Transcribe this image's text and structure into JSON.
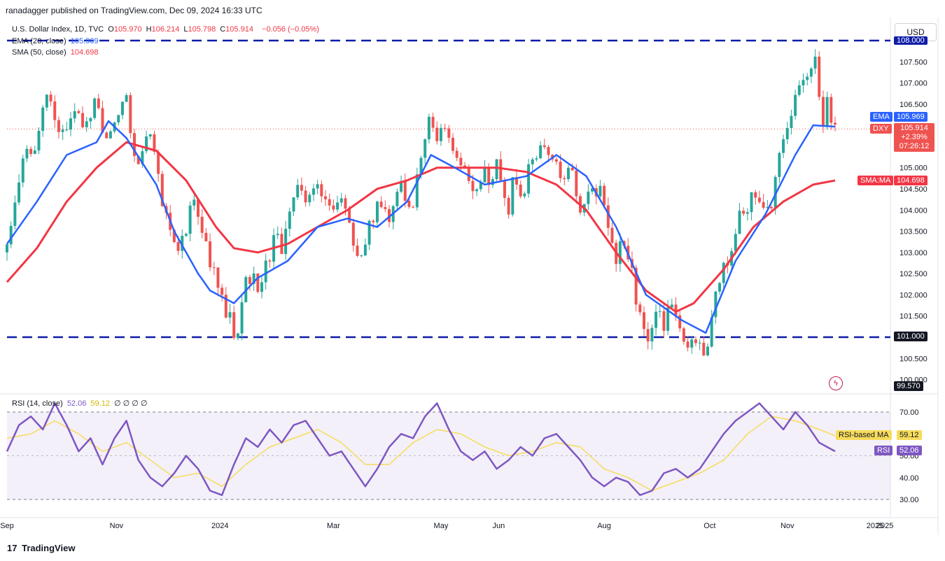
{
  "header": {
    "published": "ranadagger published on TradingView.com, Dec 09, 2024 16:33 UTC"
  },
  "legend": {
    "symbol": "U.S. Dollar Index, 1D, TVC",
    "ohlc": [
      {
        "k": "O",
        "v": "105.970"
      },
      {
        "k": "H",
        "v": "106.214"
      },
      {
        "k": "L",
        "v": "105.798"
      },
      {
        "k": "C",
        "v": "105.914"
      }
    ],
    "change": "−0.056 (−0.05%)",
    "ema_label": "EMA (20, close)",
    "ema_value": "105.969",
    "sma_label": "SMA (50, close)",
    "sma_value": "104.698",
    "rsi_label": "RSI (14, close)",
    "rsi_value": "52.06",
    "rsi_ma_value": "59.12",
    "rsi_extra": "∅ ∅ ∅ ∅"
  },
  "currency_button": "USD",
  "tags": {
    "ema_name": "EMA",
    "ema_value": "105.969",
    "dxy_name": "DXY",
    "dxy_value": "105.914",
    "dxy_change": "+2.39%",
    "dxy_timer": "07:26:12",
    "sma_name": "SMA:MA",
    "sma_value": "104.698",
    "level_101": "101.000",
    "level_top": "108.000",
    "low_value": "99.570",
    "rsi_ma_name": "RSI-based MA",
    "rsi_ma_value": "59.12",
    "rsi_name": "RSI",
    "rsi_value": "52.06"
  },
  "footer": {
    "brand": "TradingView"
  },
  "colors": {
    "up": "#26a69a",
    "down": "#ef5350",
    "ema": "#2962ff",
    "sma": "#f23645",
    "rsi": "#7e57c2",
    "rsi_ma": "#f7dc5b",
    "level": "#0d1ca8"
  },
  "chart_data": [
    {
      "type": "candlestick",
      "symbol": "DXY",
      "x_labels": [
        "Sep",
        "Nov",
        "2024",
        "Mar",
        "May",
        "Jun",
        "Aug",
        "Oct",
        "Nov",
        "2025"
      ],
      "y_ticks": [
        100.0,
        100.5,
        101.5,
        102.0,
        102.5,
        103.0,
        103.5,
        104.0,
        104.5,
        105.0,
        106.5,
        107.0,
        107.5
      ],
      "ylim": [
        99.57,
        108.4
      ],
      "horizontal_levels": [
        101.0,
        108.0
      ],
      "close_path": [
        [
          0,
          103.0
        ],
        [
          3,
          103.9
        ],
        [
          6,
          104.8
        ],
        [
          9,
          105.4
        ],
        [
          12,
          105.1
        ],
        [
          15,
          105.6
        ],
        [
          18,
          106.5
        ],
        [
          21,
          106.8
        ],
        [
          24,
          106.2
        ],
        [
          27,
          106.0
        ],
        [
          30,
          105.8
        ],
        [
          33,
          106.4
        ],
        [
          36,
          106.1
        ],
        [
          39,
          105.7
        ],
        [
          42,
          106.3
        ],
        [
          45,
          106.6
        ],
        [
          48,
          106.0
        ],
        [
          51,
          105.8
        ],
        [
          54,
          105.9
        ],
        [
          57,
          106.6
        ],
        [
          60,
          106.9
        ],
        [
          63,
          105.6
        ],
        [
          66,
          105.2
        ],
        [
          69,
          105.6
        ],
        [
          72,
          106.0
        ],
        [
          75,
          105.0
        ],
        [
          78,
          104.3
        ],
        [
          81,
          103.8
        ],
        [
          84,
          103.3
        ],
        [
          87,
          103.0
        ],
        [
          90,
          103.6
        ],
        [
          93,
          104.2
        ],
        [
          96,
          104.0
        ],
        [
          99,
          103.2
        ],
        [
          102,
          102.8
        ],
        [
          105,
          102.3
        ],
        [
          108,
          101.8
        ],
        [
          110,
          101.4
        ],
        [
          112,
          101.8
        ],
        [
          114,
          101.0
        ],
        [
          116,
          100.9
        ],
        [
          118,
          101.6
        ],
        [
          120,
          102.3
        ],
        [
          123,
          102.5
        ],
        [
          126,
          102.2
        ],
        [
          129,
          102.5
        ],
        [
          132,
          103.0
        ],
        [
          135,
          103.4
        ],
        [
          138,
          103.1
        ],
        [
          141,
          103.6
        ],
        [
          144,
          104.2
        ],
        [
          147,
          104.5
        ],
        [
          150,
          104.4
        ],
        [
          153,
          104.2
        ],
        [
          156,
          104.6
        ],
        [
          159,
          104.3
        ],
        [
          162,
          104.1
        ],
        [
          165,
          104.0
        ],
        [
          168,
          104.2
        ],
        [
          171,
          103.8
        ],
        [
          174,
          103.1
        ],
        [
          177,
          102.9
        ],
        [
          180,
          103.2
        ],
        [
          183,
          103.8
        ],
        [
          186,
          104.1
        ],
        [
          189,
          104.3
        ],
        [
          192,
          103.9
        ],
        [
          195,
          104.1
        ],
        [
          198,
          104.7
        ],
        [
          201,
          104.2
        ],
        [
          204,
          104.0
        ],
        [
          207,
          105.0
        ],
        [
          210,
          105.8
        ],
        [
          213,
          106.2
        ],
        [
          216,
          105.8
        ],
        [
          219,
          106.1
        ],
        [
          222,
          105.6
        ],
        [
          225,
          105.3
        ],
        [
          228,
          105.1
        ],
        [
          231,
          104.9
        ],
        [
          234,
          104.4
        ],
        [
          237,
          104.6
        ],
        [
          240,
          104.9
        ],
        [
          243,
          104.7
        ],
        [
          246,
          105.0
        ],
        [
          249,
          104.5
        ],
        [
          252,
          104.1
        ],
        [
          255,
          104.8
        ],
        [
          258,
          104.4
        ],
        [
          261,
          104.7
        ],
        [
          264,
          105.2
        ],
        [
          267,
          105.4
        ],
        [
          270,
          105.6
        ],
        [
          273,
          105.3
        ],
        [
          276,
          105.0
        ],
        [
          279,
          104.8
        ],
        [
          282,
          105.1
        ],
        [
          285,
          104.6
        ],
        [
          288,
          104.0
        ],
        [
          291,
          104.2
        ],
        [
          294,
          104.6
        ],
        [
          297,
          104.5
        ],
        [
          300,
          104.2
        ],
        [
          303,
          103.3
        ],
        [
          306,
          102.8
        ],
        [
          309,
          103.2
        ],
        [
          312,
          102.9
        ],
        [
          315,
          102.2
        ],
        [
          318,
          101.4
        ],
        [
          321,
          100.8
        ],
        [
          324,
          101.3
        ],
        [
          327,
          101.6
        ],
        [
          330,
          101.2
        ],
        [
          333,
          101.7
        ],
        [
          336,
          101.3
        ],
        [
          339,
          100.9
        ],
        [
          342,
          100.6
        ],
        [
          345,
          101.1
        ],
        [
          348,
          100.8
        ],
        [
          351,
          100.5
        ],
        [
          354,
          101.5
        ],
        [
          357,
          102.2
        ],
        [
          360,
          102.6
        ],
        [
          363,
          103.0
        ],
        [
          366,
          103.6
        ],
        [
          369,
          104.0
        ],
        [
          372,
          103.9
        ],
        [
          375,
          104.4
        ],
        [
          378,
          104.2
        ],
        [
          381,
          104.3
        ],
        [
          384,
          103.9
        ],
        [
          387,
          104.9
        ],
        [
          390,
          105.8
        ],
        [
          393,
          106.2
        ],
        [
          396,
          106.7
        ],
        [
          399,
          106.9
        ],
        [
          402,
          107.1
        ],
        [
          405,
          107.4
        ],
        [
          406,
          107.5
        ],
        [
          408,
          106.7
        ],
        [
          410,
          106.1
        ],
        [
          412,
          106.5
        ],
        [
          414,
          106.0
        ],
        [
          416,
          105.9
        ]
      ],
      "ema20_path": [
        [
          0,
          103.2
        ],
        [
          15,
          104.2
        ],
        [
          30,
          105.3
        ],
        [
          45,
          105.6
        ],
        [
          51,
          106.1
        ],
        [
          60,
          105.7
        ],
        [
          75,
          104.6
        ],
        [
          84,
          103.5
        ],
        [
          96,
          102.5
        ],
        [
          102,
          102.1
        ],
        [
          114,
          101.8
        ],
        [
          126,
          102.4
        ],
        [
          141,
          102.8
        ],
        [
          156,
          103.6
        ],
        [
          171,
          103.8
        ],
        [
          186,
          103.6
        ],
        [
          201,
          104.2
        ],
        [
          213,
          105.3
        ],
        [
          225,
          105.0
        ],
        [
          240,
          104.6
        ],
        [
          261,
          104.8
        ],
        [
          276,
          105.3
        ],
        [
          291,
          104.8
        ],
        [
          306,
          103.6
        ],
        [
          321,
          102.0
        ],
        [
          339,
          101.4
        ],
        [
          351,
          101.1
        ],
        [
          366,
          102.8
        ],
        [
          381,
          103.9
        ],
        [
          396,
          105.3
        ],
        [
          405,
          106.0
        ],
        [
          416,
          105.97
        ]
      ],
      "sma50_path": [
        [
          0,
          102.3
        ],
        [
          15,
          103.1
        ],
        [
          30,
          104.2
        ],
        [
          45,
          105.0
        ],
        [
          60,
          105.6
        ],
        [
          75,
          105.4
        ],
        [
          90,
          104.7
        ],
        [
          105,
          103.6
        ],
        [
          114,
          103.1
        ],
        [
          126,
          103.0
        ],
        [
          141,
          103.2
        ],
        [
          156,
          103.6
        ],
        [
          171,
          104.0
        ],
        [
          186,
          104.5
        ],
        [
          201,
          104.7
        ],
        [
          216,
          105.0
        ],
        [
          231,
          105.0
        ],
        [
          246,
          105.0
        ],
        [
          261,
          104.9
        ],
        [
          276,
          104.6
        ],
        [
          291,
          104.0
        ],
        [
          306,
          103.0
        ],
        [
          321,
          102.1
        ],
        [
          336,
          101.6
        ],
        [
          345,
          101.8
        ],
        [
          360,
          102.6
        ],
        [
          375,
          103.6
        ],
        [
          390,
          104.2
        ],
        [
          405,
          104.6
        ],
        [
          416,
          104.698
        ]
      ],
      "last_close": 105.914,
      "ema20_last": 105.969,
      "sma50_last": 104.698
    },
    {
      "type": "line",
      "name": "RSI (14, close)",
      "y_ticks": [
        30.0,
        40.0,
        50.0,
        60.0,
        70.0
      ],
      "ylim": [
        25,
        80
      ],
      "bands": [
        30,
        70
      ],
      "rsi_path": [
        [
          0,
          52
        ],
        [
          6,
          64
        ],
        [
          12,
          68
        ],
        [
          18,
          62
        ],
        [
          24,
          74
        ],
        [
          30,
          64
        ],
        [
          36,
          52
        ],
        [
          42,
          58
        ],
        [
          48,
          46
        ],
        [
          54,
          58
        ],
        [
          60,
          66
        ],
        [
          66,
          48
        ],
        [
          72,
          40
        ],
        [
          78,
          36
        ],
        [
          84,
          42
        ],
        [
          90,
          50
        ],
        [
          96,
          44
        ],
        [
          102,
          34
        ],
        [
          108,
          32
        ],
        [
          114,
          46
        ],
        [
          120,
          58
        ],
        [
          126,
          54
        ],
        [
          132,
          62
        ],
        [
          138,
          56
        ],
        [
          144,
          64
        ],
        [
          150,
          66
        ],
        [
          156,
          58
        ],
        [
          162,
          50
        ],
        [
          168,
          52
        ],
        [
          174,
          44
        ],
        [
          180,
          36
        ],
        [
          186,
          44
        ],
        [
          192,
          54
        ],
        [
          198,
          60
        ],
        [
          204,
          58
        ],
        [
          210,
          68
        ],
        [
          216,
          74
        ],
        [
          222,
          62
        ],
        [
          228,
          52
        ],
        [
          234,
          48
        ],
        [
          240,
          52
        ],
        [
          246,
          44
        ],
        [
          252,
          48
        ],
        [
          258,
          54
        ],
        [
          264,
          50
        ],
        [
          270,
          58
        ],
        [
          276,
          60
        ],
        [
          282,
          54
        ],
        [
          288,
          48
        ],
        [
          294,
          40
        ],
        [
          300,
          36
        ],
        [
          306,
          40
        ],
        [
          312,
          38
        ],
        [
          318,
          32
        ],
        [
          324,
          34
        ],
        [
          330,
          42
        ],
        [
          336,
          44
        ],
        [
          342,
          40
        ],
        [
          348,
          44
        ],
        [
          354,
          52
        ],
        [
          360,
          60
        ],
        [
          366,
          66
        ],
        [
          372,
          70
        ],
        [
          378,
          74
        ],
        [
          384,
          68
        ],
        [
          390,
          62
        ],
        [
          396,
          70
        ],
        [
          402,
          64
        ],
        [
          408,
          56
        ],
        [
          412,
          54
        ],
        [
          416,
          52.06
        ]
      ],
      "rsi_ma_path": [
        [
          0,
          58
        ],
        [
          12,
          60
        ],
        [
          24,
          66
        ],
        [
          36,
          60
        ],
        [
          48,
          52
        ],
        [
          60,
          56
        ],
        [
          72,
          48
        ],
        [
          84,
          40
        ],
        [
          96,
          42
        ],
        [
          108,
          36
        ],
        [
          120,
          46
        ],
        [
          132,
          54
        ],
        [
          144,
          58
        ],
        [
          156,
          62
        ],
        [
          168,
          56
        ],
        [
          180,
          46
        ],
        [
          192,
          46
        ],
        [
          204,
          56
        ],
        [
          216,
          62
        ],
        [
          228,
          60
        ],
        [
          240,
          54
        ],
        [
          252,
          50
        ],
        [
          264,
          52
        ],
        [
          276,
          56
        ],
        [
          288,
          54
        ],
        [
          300,
          44
        ],
        [
          312,
          40
        ],
        [
          324,
          34
        ],
        [
          336,
          38
        ],
        [
          348,
          42
        ],
        [
          360,
          48
        ],
        [
          372,
          60
        ],
        [
          384,
          68
        ],
        [
          396,
          66
        ],
        [
          408,
          62
        ],
        [
          416,
          59.12
        ]
      ]
    }
  ]
}
